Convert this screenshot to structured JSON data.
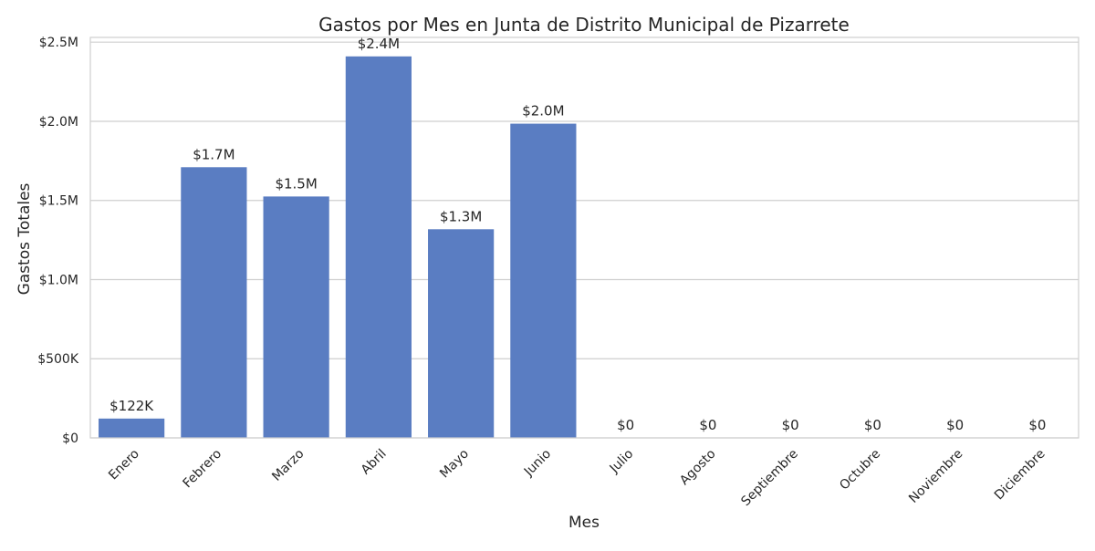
{
  "chart_data": {
    "type": "bar",
    "title": "Gastos por Mes en Junta de Distrito Municipal de Pizarrete",
    "xlabel": "Mes",
    "ylabel": "Gastos Totales",
    "categories": [
      "Enero",
      "Febrero",
      "Marzo",
      "Abril",
      "Mayo",
      "Junio",
      "Julio",
      "Agosto",
      "Septiembre",
      "Octubre",
      "Noviembre",
      "Diciembre"
    ],
    "values": [
      122000,
      1710000,
      1525000,
      2410000,
      1318000,
      1985000,
      0,
      0,
      0,
      0,
      0,
      0
    ],
    "value_labels": [
      "$122K",
      "$1.7M",
      "$1.5M",
      "$2.4M",
      "$1.3M",
      "$2.0M",
      "$0",
      "$0",
      "$0",
      "$0",
      "$0",
      "$0"
    ],
    "ylim": [
      0,
      2530000
    ],
    "yticks": [
      0,
      500000,
      1000000,
      1500000,
      2000000,
      2500000
    ],
    "ytick_labels": [
      "$0",
      "$500K",
      "$1.0M",
      "$1.5M",
      "$2.0M",
      "$2.5M"
    ],
    "grid": true,
    "bar_color": "#5a7dc2",
    "grid_color": "#cfcfcf"
  }
}
